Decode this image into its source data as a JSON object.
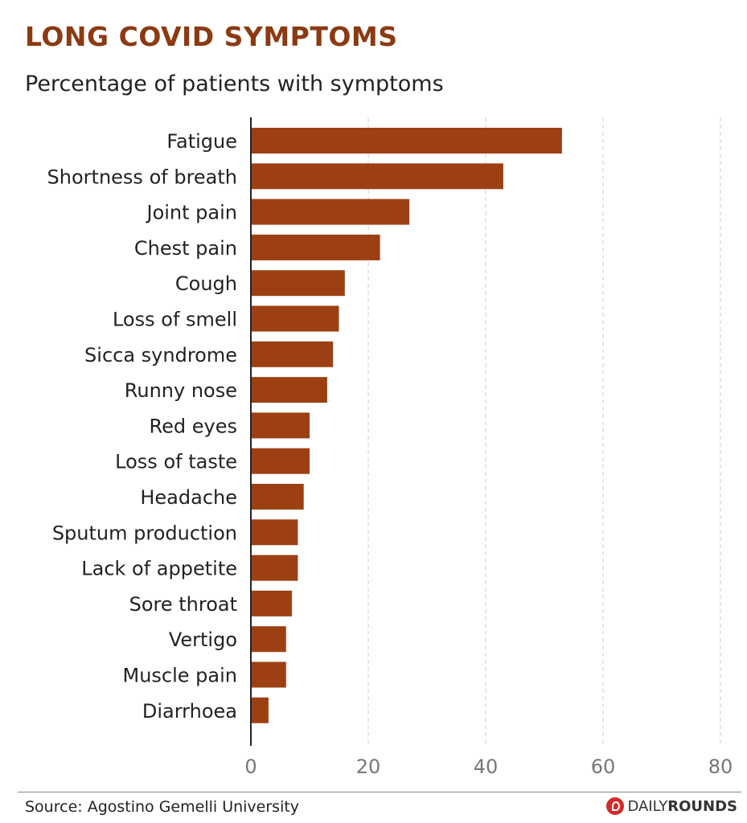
{
  "header": {
    "title": "LONG COVID SYMPTOMS",
    "subtitle": "Percentage of patients with symptoms"
  },
  "footer": {
    "source": "Source: Agostino Gemelli University",
    "brand_light": "DAILY",
    "brand_bold": "ROUNDS",
    "brand_icon": "daily-rounds-logo-icon"
  },
  "colors": {
    "bar": "#9c4014",
    "title": "#8b3a12",
    "grid": "#cccccc",
    "axis": "#222222",
    "tick_text": "#777777"
  },
  "chart_data": {
    "type": "bar",
    "orientation": "horizontal",
    "categories": [
      "Fatigue",
      "Shortness of breath",
      "Joint pain",
      "Chest pain",
      "Cough",
      "Loss of smell",
      "Sicca syndrome",
      "Runny nose",
      "Red eyes",
      "Loss of taste",
      "Headache",
      "Sputum production",
      "Lack of appetite",
      "Sore throat",
      "Vertigo",
      "Muscle pain",
      "Diarrhoea"
    ],
    "values": [
      53,
      43,
      27,
      22,
      16,
      15,
      14,
      13,
      10,
      10,
      9,
      8,
      8,
      7,
      6,
      6,
      3
    ],
    "xlim": [
      0,
      80
    ],
    "xticks": [
      0,
      20,
      40,
      60,
      80
    ],
    "grid": "vertical dashed",
    "title": "LONG COVID SYMPTOMS",
    "subtitle": "Percentage of patients with symptoms",
    "xlabel": "",
    "ylabel": ""
  }
}
